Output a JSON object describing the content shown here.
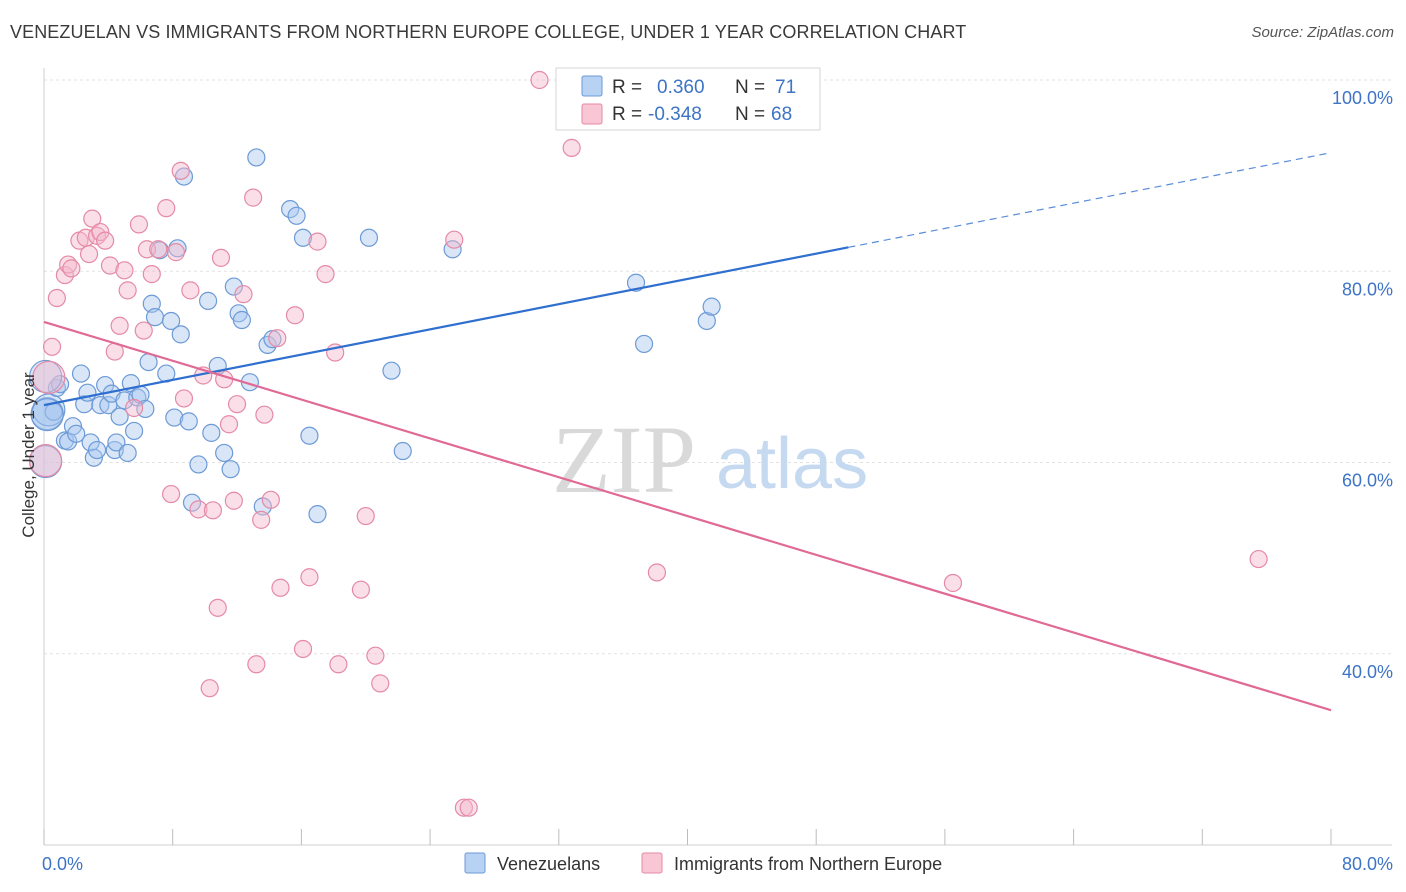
{
  "header": {
    "title": "VENEZUELAN VS IMMIGRANTS FROM NORTHERN EUROPE COLLEGE, UNDER 1 YEAR CORRELATION CHART",
    "source": "Source: ZipAtlas.com"
  },
  "watermark": {
    "zip": "ZIP",
    "atlas": "atlas"
  },
  "legend": {
    "rows": [
      {
        "r_label": "R =",
        "r_value": "0.360",
        "n_label": "N =",
        "n_value": "71"
      },
      {
        "r_label": "R =",
        "r_value": "-0.348",
        "n_label": "N =",
        "n_value": "68"
      }
    ]
  },
  "bottom_legend": {
    "items": [
      {
        "label": "Venezuelans"
      },
      {
        "label": "Immigrants from Northern Europe"
      }
    ]
  },
  "colors": {
    "blue_fill": "#a9c8f0",
    "blue_stroke": "#6d9ad6",
    "blue_line": "#2f6fcf",
    "pink_fill": "#f5b8cb",
    "pink_stroke": "#e58aa6",
    "pink_line": "#e06a95",
    "grid": "#e2e2e2",
    "axis_text": "#3d74c6"
  },
  "chart_data": {
    "type": "scatter",
    "title": "VENEZUELAN VS IMMIGRANTS FROM NORTHERN EUROPE COLLEGE, UNDER 1 YEAR CORRELATION CHART",
    "xlabel": "",
    "ylabel": "College, Under 1 year",
    "xlim": [
      0,
      80
    ],
    "ylim": [
      20,
      100
    ],
    "x_tick_labels": [
      "0.0%",
      "80.0%"
    ],
    "y_tick_labels": [
      "40.0%",
      "60.0%",
      "80.0%",
      "100.0%"
    ],
    "y_ticks": [
      40,
      60,
      80,
      100
    ],
    "grid": true,
    "legend_position": "top-center",
    "series": [
      {
        "name": "Venezuelans",
        "color": "#a9c8f0",
        "r": 0.36,
        "n": 71,
        "trend": {
          "x0": 0,
          "y0": 66.0,
          "x1": 50,
          "y1": 82.5,
          "dashed_to_x": 80,
          "dashed_to_y": 92.4
        },
        "points": [
          [
            0.2,
            65.1
          ],
          [
            0.3,
            65.5
          ],
          [
            0.6,
            65.3
          ],
          [
            0.8,
            67.8
          ],
          [
            1.0,
            68.2
          ],
          [
            1.3,
            62.3
          ],
          [
            1.5,
            62.2
          ],
          [
            1.8,
            63.8
          ],
          [
            2.0,
            63.0
          ],
          [
            2.3,
            69.3
          ],
          [
            2.5,
            66.1
          ],
          [
            2.7,
            67.3
          ],
          [
            2.9,
            62.1
          ],
          [
            3.1,
            60.5
          ],
          [
            3.3,
            61.3
          ],
          [
            3.5,
            66.0
          ],
          [
            3.8,
            68.1
          ],
          [
            4.0,
            66.0
          ],
          [
            4.2,
            67.2
          ],
          [
            4.4,
            61.3
          ],
          [
            4.5,
            62.1
          ],
          [
            4.7,
            64.8
          ],
          [
            5.0,
            66.5
          ],
          [
            5.2,
            61.0
          ],
          [
            5.4,
            68.3
          ],
          [
            5.6,
            63.3
          ],
          [
            5.8,
            66.8
          ],
          [
            6.0,
            67.1
          ],
          [
            6.3,
            65.6
          ],
          [
            6.5,
            70.5
          ],
          [
            6.7,
            76.6
          ],
          [
            6.9,
            75.2
          ],
          [
            7.2,
            82.2
          ],
          [
            7.6,
            69.3
          ],
          [
            7.9,
            74.8
          ],
          [
            8.1,
            64.7
          ],
          [
            8.3,
            82.4
          ],
          [
            8.5,
            73.4
          ],
          [
            8.7,
            89.9
          ],
          [
            9.0,
            64.3
          ],
          [
            9.2,
            55.8
          ],
          [
            9.6,
            59.8
          ],
          [
            10.2,
            76.9
          ],
          [
            10.4,
            63.1
          ],
          [
            10.8,
            70.1
          ],
          [
            11.2,
            61.0
          ],
          [
            11.6,
            59.3
          ],
          [
            11.8,
            78.4
          ],
          [
            12.1,
            75.6
          ],
          [
            12.3,
            74.9
          ],
          [
            12.8,
            68.4
          ],
          [
            13.2,
            91.9
          ],
          [
            13.6,
            55.4
          ],
          [
            13.9,
            72.3
          ],
          [
            14.2,
            72.9
          ],
          [
            15.3,
            86.5
          ],
          [
            15.7,
            85.8
          ],
          [
            16.1,
            83.5
          ],
          [
            16.5,
            62.8
          ],
          [
            17.0,
            54.6
          ],
          [
            20.2,
            83.5
          ],
          [
            21.6,
            69.6
          ],
          [
            22.3,
            61.2
          ],
          [
            25.4,
            82.3
          ],
          [
            36.8,
            78.8
          ],
          [
            37.3,
            72.4
          ],
          [
            41.2,
            74.8
          ],
          [
            41.5,
            76.3
          ],
          [
            0.1,
            69.0
          ],
          [
            0.1,
            60.1
          ],
          [
            0.2,
            65.0
          ]
        ]
      },
      {
        "name": "Immigrants from Northern Europe",
        "color": "#f5b8cb",
        "r": -0.348,
        "n": 68,
        "trend": {
          "x0": 0,
          "y0": 74.7,
          "x1": 80,
          "y1": 34.1
        },
        "points": [
          [
            0.1,
            60.2
          ],
          [
            0.3,
            68.9
          ],
          [
            0.5,
            72.1
          ],
          [
            0.8,
            77.2
          ],
          [
            1.3,
            79.6
          ],
          [
            1.5,
            80.7
          ],
          [
            1.7,
            80.3
          ],
          [
            2.2,
            83.2
          ],
          [
            2.6,
            83.5
          ],
          [
            2.8,
            81.8
          ],
          [
            3.0,
            85.5
          ],
          [
            3.3,
            83.7
          ],
          [
            3.5,
            84.1
          ],
          [
            3.8,
            83.2
          ],
          [
            4.1,
            80.6
          ],
          [
            4.4,
            71.6
          ],
          [
            4.7,
            74.3
          ],
          [
            5.0,
            80.1
          ],
          [
            5.2,
            78.0
          ],
          [
            5.6,
            65.7
          ],
          [
            5.9,
            84.9
          ],
          [
            6.2,
            73.8
          ],
          [
            6.4,
            82.3
          ],
          [
            6.7,
            79.7
          ],
          [
            7.1,
            82.3
          ],
          [
            7.6,
            86.6
          ],
          [
            7.9,
            56.7
          ],
          [
            8.2,
            82.0
          ],
          [
            8.5,
            90.5
          ],
          [
            8.7,
            66.7
          ],
          [
            9.1,
            78.0
          ],
          [
            9.6,
            55.1
          ],
          [
            9.9,
            69.1
          ],
          [
            10.3,
            36.4
          ],
          [
            10.5,
            55.0
          ],
          [
            10.8,
            44.8
          ],
          [
            11.0,
            81.4
          ],
          [
            11.2,
            68.7
          ],
          [
            11.5,
            64.0
          ],
          [
            11.8,
            56.0
          ],
          [
            12.0,
            66.1
          ],
          [
            12.4,
            77.6
          ],
          [
            13.0,
            87.7
          ],
          [
            13.2,
            38.9
          ],
          [
            13.5,
            54.0
          ],
          [
            13.7,
            65.0
          ],
          [
            14.1,
            56.1
          ],
          [
            14.5,
            73.0
          ],
          [
            14.7,
            46.9
          ],
          [
            15.6,
            75.4
          ],
          [
            16.1,
            40.5
          ],
          [
            16.5,
            48.0
          ],
          [
            17.0,
            83.1
          ],
          [
            17.5,
            79.7
          ],
          [
            18.1,
            71.5
          ],
          [
            18.3,
            38.9
          ],
          [
            19.7,
            46.7
          ],
          [
            20.0,
            54.4
          ],
          [
            20.6,
            39.8
          ],
          [
            20.9,
            36.9
          ],
          [
            25.5,
            83.3
          ],
          [
            26.1,
            23.9
          ],
          [
            26.4,
            23.9
          ],
          [
            30.8,
            100.0
          ],
          [
            32.8,
            92.9
          ],
          [
            38.1,
            48.5
          ],
          [
            56.5,
            47.4
          ],
          [
            75.5,
            49.9
          ]
        ]
      }
    ]
  }
}
